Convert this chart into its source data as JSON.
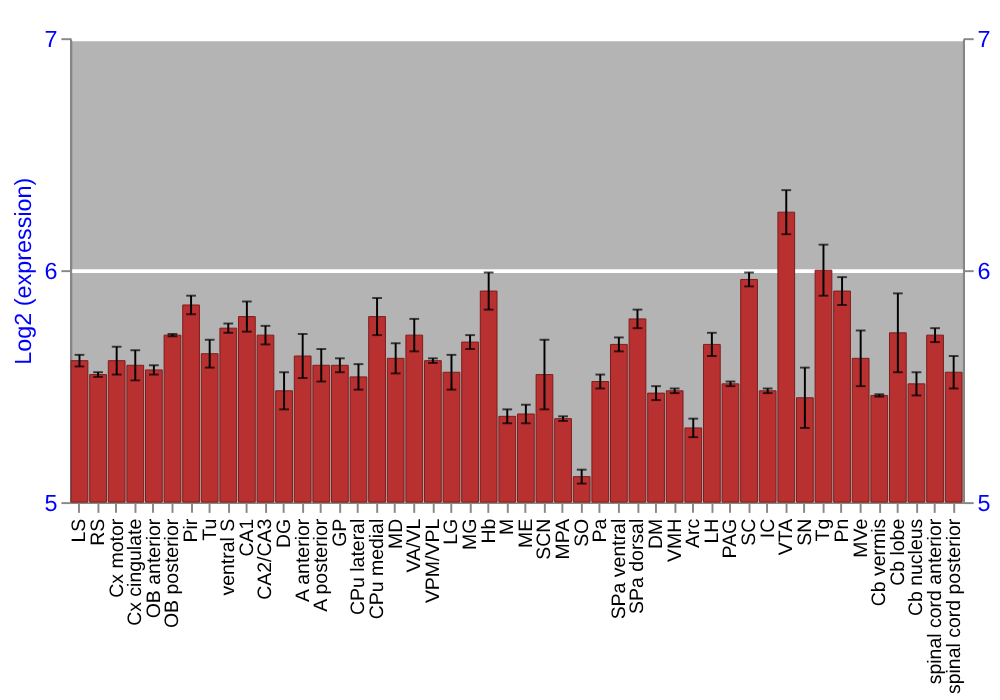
{
  "chart_data": {
    "type": "bar",
    "categories": [
      "LS",
      "RS",
      "Cx motor",
      "Cx cingulate",
      "OB anterior",
      "OB posterior",
      "Pir",
      "Tu",
      "ventral S",
      "CA1",
      "CA2/CA3",
      "DG",
      "A anterior",
      "A posterior",
      "GP",
      "CPu lateral",
      "CPu medial",
      "MD",
      "VA/VL",
      "VPM/VPL",
      "LG",
      "MG",
      "Hb",
      "M",
      "ME",
      "SCN",
      "MPA",
      "SO",
      "Pa",
      "SPa ventral",
      "SPa dorsal",
      "DM",
      "VMH",
      "Arc",
      "LH",
      "PAG",
      "SC",
      "IC",
      "VTA",
      "SN",
      "Tg",
      "Pn",
      "MVe",
      "Cb vermis",
      "Cb lobe",
      "Cb nucleus",
      "spinal cord anterior",
      "spinal cord posterior"
    ],
    "values": [
      5.61,
      5.55,
      5.61,
      5.59,
      5.57,
      5.72,
      5.85,
      5.64,
      5.75,
      5.8,
      5.72,
      5.48,
      5.63,
      5.59,
      5.59,
      5.54,
      5.8,
      5.62,
      5.72,
      5.61,
      5.56,
      5.69,
      5.91,
      5.37,
      5.38,
      5.55,
      5.36,
      5.11,
      5.52,
      5.68,
      5.79,
      5.47,
      5.48,
      5.32,
      5.68,
      5.51,
      5.96,
      5.48,
      6.25,
      5.45,
      6.0,
      5.91,
      5.62,
      5.46,
      5.73,
      5.51,
      5.72,
      5.56
    ],
    "errors": [
      0.025,
      0.01,
      0.06,
      0.065,
      0.02,
      0.005,
      0.04,
      0.06,
      0.02,
      0.065,
      0.04,
      0.08,
      0.095,
      0.07,
      0.03,
      0.055,
      0.08,
      0.065,
      0.07,
      0.01,
      0.075,
      0.03,
      0.08,
      0.03,
      0.04,
      0.15,
      0.01,
      0.03,
      0.03,
      0.03,
      0.04,
      0.03,
      0.01,
      0.04,
      0.05,
      0.01,
      0.03,
      0.01,
      0.095,
      0.13,
      0.11,
      0.06,
      0.12,
      0.005,
      0.17,
      0.05,
      0.03,
      0.07
    ],
    "color": "#b83030",
    "ylabel": "Log2 (expression)",
    "ylim": [
      5,
      7
    ],
    "yticks": [
      5,
      6,
      7
    ],
    "y2lim": [
      5,
      7
    ],
    "y2ticks": [
      5,
      6,
      7
    ],
    "grid": "y"
  }
}
